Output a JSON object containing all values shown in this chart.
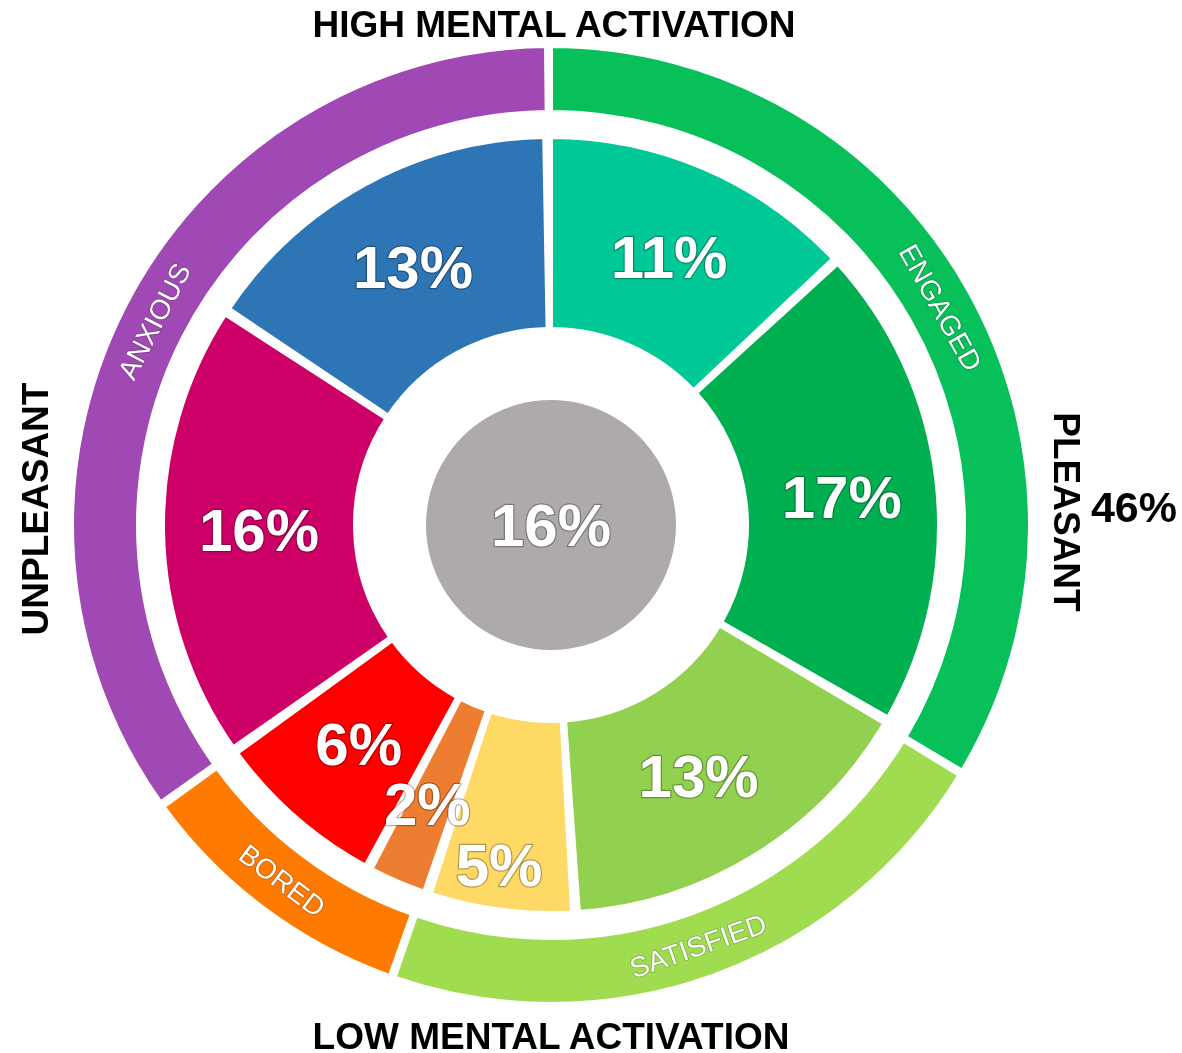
{
  "chart_data": [
    {
      "type": "pie",
      "categories": [
        null
      ],
      "values": [
        16
      ],
      "colors": [
        "#aeaaaa"
      ],
      "value_labels": [
        "16%"
      ]
    },
    {
      "type": "donut",
      "categories": [
        null,
        null,
        null,
        null,
        null,
        null,
        null,
        null
      ],
      "values": [
        11,
        17,
        13,
        5,
        2,
        6,
        16,
        13
      ],
      "colors": [
        "#00c896",
        "#00b050",
        "#92d050",
        "#ffd966",
        "#ed7d31",
        "#ff0000",
        "#cc0066",
        "#2e75b6"
      ],
      "value_labels": [
        "11%",
        "17%",
        "13%",
        "5%",
        "2%",
        "6%",
        "16%",
        "13%"
      ]
    },
    {
      "type": "donut",
      "x2label": "HIGH MENTAL ACTIVATION",
      "xlabel": "LOW MENTAL ACTIVATION",
      "ylabel": "UNPLEASANT",
      "y2label": "PLEASANT",
      "annotations": [
        "46%"
      ],
      "categories": [
        "ENGAGED",
        "SATISFIED",
        "BORED",
        "ANXIOUS"
      ],
      "values": [
        33.8,
        21.7,
        9.6,
        34.9
      ],
      "colors": [
        "#07c05a",
        "#a0dc50",
        "#ff7a00",
        "#a048b4"
      ]
    }
  ]
}
